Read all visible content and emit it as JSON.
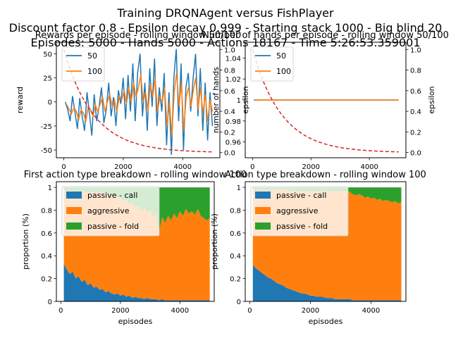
{
  "figure": {
    "suptitle_lines": [
      "Training DRQNAgent versus FishPlayer",
      "Discount factor 0.8 - Epsilon decay 0.999 - Starting stack 1000 - Big blind 20",
      "Episodes: 5000 - Hands 5000 - Actions 18167 - Time 5:26:53.359001"
    ],
    "colors": {
      "blue": "#1f77b4",
      "orange": "#ff7f0e",
      "green": "#2ca02c",
      "red": "#d62728"
    }
  },
  "chart_data": [
    {
      "type": "line",
      "title": "Rewards per episode - rolling window 50/100",
      "xlabel": "",
      "ylabel": "reward",
      "right_ylabel": "epsilon",
      "xlim": [
        -250,
        5250
      ],
      "ylim": [
        -58,
        62
      ],
      "xticks": [
        0,
        2000,
        4000
      ],
      "yticks": [
        -50,
        -25,
        0,
        25,
        50
      ],
      "right_ylim": [
        -0.05,
        1.07
      ],
      "right_yticks": [
        0.0,
        0.2,
        0.4,
        0.6,
        0.8,
        1.0
      ],
      "legend": {
        "entries": [
          "50",
          "100"
        ],
        "placement": "upper-left"
      },
      "series": [
        {
          "name": "50",
          "color": "#1f77b4",
          "x_start": 50,
          "x_end": 5000,
          "description": "rolling mean window 50",
          "values": [
            0,
            -8,
            -20,
            6,
            -10,
            -28,
            4,
            -15,
            -30,
            10,
            -12,
            -35,
            8,
            -20,
            -5,
            15,
            -22,
            -8,
            20,
            -15,
            5,
            -25,
            12,
            -2,
            25,
            -18,
            28,
            -10,
            40,
            -20,
            30,
            50,
            -15,
            20,
            -30,
            35,
            -5,
            45,
            -25,
            15,
            -10,
            30,
            -45,
            10,
            -55,
            25,
            55,
            -20,
            40,
            -50,
            15,
            30,
            -10,
            25,
            50,
            -15,
            35,
            -30,
            20,
            -40,
            10,
            -25
          ]
        },
        {
          "name": "100",
          "color": "#ff7f0e",
          "x_start": 100,
          "x_end": 5000,
          "description": "rolling mean window 100",
          "values": [
            -3,
            -8,
            -12,
            -6,
            -10,
            -18,
            -8,
            -12,
            -20,
            -5,
            -8,
            -15,
            -3,
            -10,
            -2,
            5,
            -10,
            0,
            8,
            -5,
            2,
            -10,
            6,
            2,
            12,
            -2,
            15,
            0,
            20,
            5,
            15,
            28,
            0,
            10,
            -10,
            18,
            5,
            25,
            -10,
            5,
            0,
            15,
            -25,
            0,
            -35,
            10,
            30,
            -5,
            20,
            -30,
            5,
            15,
            -5,
            12,
            25,
            -8,
            15,
            -12,
            8,
            -20,
            2,
            -10
          ]
        },
        {
          "name": "epsilon",
          "color": "#d62728",
          "dashed": true,
          "axis": "right",
          "decay": 0.999,
          "x_start": 0,
          "x_end": 5000
        }
      ]
    },
    {
      "type": "line",
      "title": "Number of hands per episode - rolling window 50/100",
      "xlabel": "",
      "ylabel": "number of hands",
      "right_ylabel": "epsilon",
      "xlim": [
        -250,
        5250
      ],
      "ylim": [
        0.945,
        1.055
      ],
      "xticks": [
        0,
        2000,
        4000
      ],
      "yticks": [
        0.96,
        0.98,
        1.0,
        1.02,
        1.04
      ],
      "right_ylim": [
        -0.05,
        1.07
      ],
      "right_yticks": [
        0.0,
        0.2,
        0.4,
        0.6,
        0.8,
        1.0
      ],
      "legend": {
        "entries": [
          "50",
          "100"
        ],
        "placement": "upper-left"
      },
      "series": [
        {
          "name": "50",
          "color": "#1f77b4",
          "x_start": 50,
          "x_end": 5000,
          "values": [
            1.0,
            1.0
          ]
        },
        {
          "name": "100",
          "color": "#ff7f0e",
          "x_start": 100,
          "x_end": 5000,
          "values": [
            1.0,
            1.0
          ]
        },
        {
          "name": "epsilon",
          "color": "#d62728",
          "dashed": true,
          "axis": "right",
          "decay": 0.999,
          "x_start": 0,
          "x_end": 5000
        }
      ]
    },
    {
      "type": "area",
      "title": "First action type breakdown - rolling window 100",
      "xlabel": "episodes",
      "ylabel": "proportion (%)",
      "xlim": [
        -150,
        5150
      ],
      "ylim": [
        0,
        1.05
      ],
      "xticks": [
        0,
        2000,
        4000
      ],
      "yticks": [
        0.0,
        0.2,
        0.4,
        0.6,
        0.8,
        1.0
      ],
      "legend": {
        "entries": [
          "passive - call",
          "aggressive",
          "passive - fold"
        ],
        "placement": "upper-left"
      },
      "x_start": 100,
      "x_end": 5000,
      "series": [
        {
          "name": "passive - call",
          "color": "#1f77b4",
          "values": [
            0.33,
            0.28,
            0.24,
            0.26,
            0.2,
            0.22,
            0.17,
            0.19,
            0.14,
            0.16,
            0.12,
            0.13,
            0.1,
            0.11,
            0.08,
            0.09,
            0.07,
            0.06,
            0.07,
            0.05,
            0.06,
            0.04,
            0.05,
            0.03,
            0.04,
            0.03,
            0.03,
            0.02,
            0.03,
            0.02,
            0.02,
            0.02,
            0.01,
            0.02,
            0.01,
            0.01,
            0.01,
            0.01,
            0.01,
            0.01,
            0.01,
            0.01,
            0.01,
            0.01,
            0.01,
            0.01,
            0.01,
            0.01,
            0.01,
            0.01
          ]
        },
        {
          "name": "aggressive",
          "color": "#ff7f0e",
          "values": [
            0.65,
            0.69,
            0.73,
            0.71,
            0.77,
            0.74,
            0.8,
            0.77,
            0.82,
            0.8,
            0.84,
            0.82,
            0.86,
            0.84,
            0.87,
            0.85,
            0.86,
            0.87,
            0.84,
            0.86,
            0.82,
            0.85,
            0.8,
            0.84,
            0.78,
            0.82,
            0.76,
            0.8,
            0.75,
            0.78,
            0.72,
            0.76,
            0.6,
            0.72,
            0.68,
            0.74,
            0.7,
            0.76,
            0.72,
            0.78,
            0.74,
            0.8,
            0.76,
            0.78,
            0.75,
            0.8,
            0.74,
            0.72,
            0.7,
            0.72
          ]
        },
        {
          "name": "passive - fold",
          "color": "#2ca02c",
          "values": [
            0.02,
            0.03,
            0.03,
            0.03,
            0.03,
            0.04,
            0.03,
            0.04,
            0.04,
            0.04,
            0.04,
            0.05,
            0.04,
            0.05,
            0.05,
            0.06,
            0.07,
            0.07,
            0.09,
            0.09,
            0.12,
            0.11,
            0.15,
            0.13,
            0.18,
            0.15,
            0.21,
            0.18,
            0.22,
            0.2,
            0.26,
            0.22,
            0.39,
            0.26,
            0.31,
            0.25,
            0.29,
            0.23,
            0.27,
            0.21,
            0.25,
            0.19,
            0.23,
            0.21,
            0.24,
            0.19,
            0.25,
            0.27,
            0.29,
            0.27
          ]
        }
      ]
    },
    {
      "type": "area",
      "title": "Action type breakdown - rolling window 100",
      "xlabel": "episodes",
      "ylabel": "proportion (%)",
      "xlim": [
        -150,
        5150
      ],
      "ylim": [
        0,
        1.05
      ],
      "xticks": [
        0,
        2000,
        4000
      ],
      "yticks": [
        0.0,
        0.2,
        0.4,
        0.6,
        0.8,
        1.0
      ],
      "legend": {
        "entries": [
          "passive - call",
          "aggressive",
          "passive - fold"
        ],
        "placement": "upper-left"
      },
      "x_start": 100,
      "x_end": 5000,
      "series": [
        {
          "name": "passive - call",
          "color": "#1f77b4",
          "values": [
            0.32,
            0.29,
            0.27,
            0.25,
            0.23,
            0.21,
            0.2,
            0.18,
            0.16,
            0.15,
            0.14,
            0.12,
            0.11,
            0.1,
            0.09,
            0.08,
            0.07,
            0.07,
            0.06,
            0.05,
            0.05,
            0.04,
            0.04,
            0.04,
            0.03,
            0.03,
            0.03,
            0.02,
            0.02,
            0.02,
            0.02,
            0.02,
            0.02,
            0.01,
            0.01,
            0.01,
            0.01,
            0.01,
            0.01,
            0.01,
            0.01,
            0.01,
            0.01,
            0.01,
            0.01,
            0.01,
            0.01,
            0.01,
            0.01,
            0.01
          ]
        },
        {
          "name": "aggressive",
          "color": "#ff7f0e",
          "values": [
            0.66,
            0.69,
            0.71,
            0.73,
            0.75,
            0.77,
            0.78,
            0.8,
            0.82,
            0.83,
            0.84,
            0.86,
            0.86,
            0.87,
            0.88,
            0.89,
            0.9,
            0.9,
            0.91,
            0.92,
            0.92,
            0.93,
            0.93,
            0.93,
            0.94,
            0.94,
            0.94,
            0.95,
            0.95,
            0.95,
            0.95,
            0.95,
            0.94,
            0.93,
            0.92,
            0.93,
            0.92,
            0.9,
            0.91,
            0.89,
            0.9,
            0.88,
            0.89,
            0.87,
            0.88,
            0.87,
            0.86,
            0.87,
            0.85,
            0.86
          ]
        },
        {
          "name": "passive - fold",
          "color": "#2ca02c",
          "values": [
            0.02,
            0.02,
            0.02,
            0.02,
            0.02,
            0.02,
            0.02,
            0.02,
            0.02,
            0.02,
            0.02,
            0.02,
            0.03,
            0.03,
            0.03,
            0.03,
            0.03,
            0.03,
            0.03,
            0.03,
            0.03,
            0.03,
            0.03,
            0.03,
            0.03,
            0.03,
            0.03,
            0.03,
            0.03,
            0.03,
            0.03,
            0.03,
            0.04,
            0.06,
            0.07,
            0.06,
            0.07,
            0.09,
            0.08,
            0.1,
            0.09,
            0.11,
            0.1,
            0.12,
            0.11,
            0.12,
            0.13,
            0.12,
            0.14,
            0.13
          ]
        }
      ]
    }
  ]
}
